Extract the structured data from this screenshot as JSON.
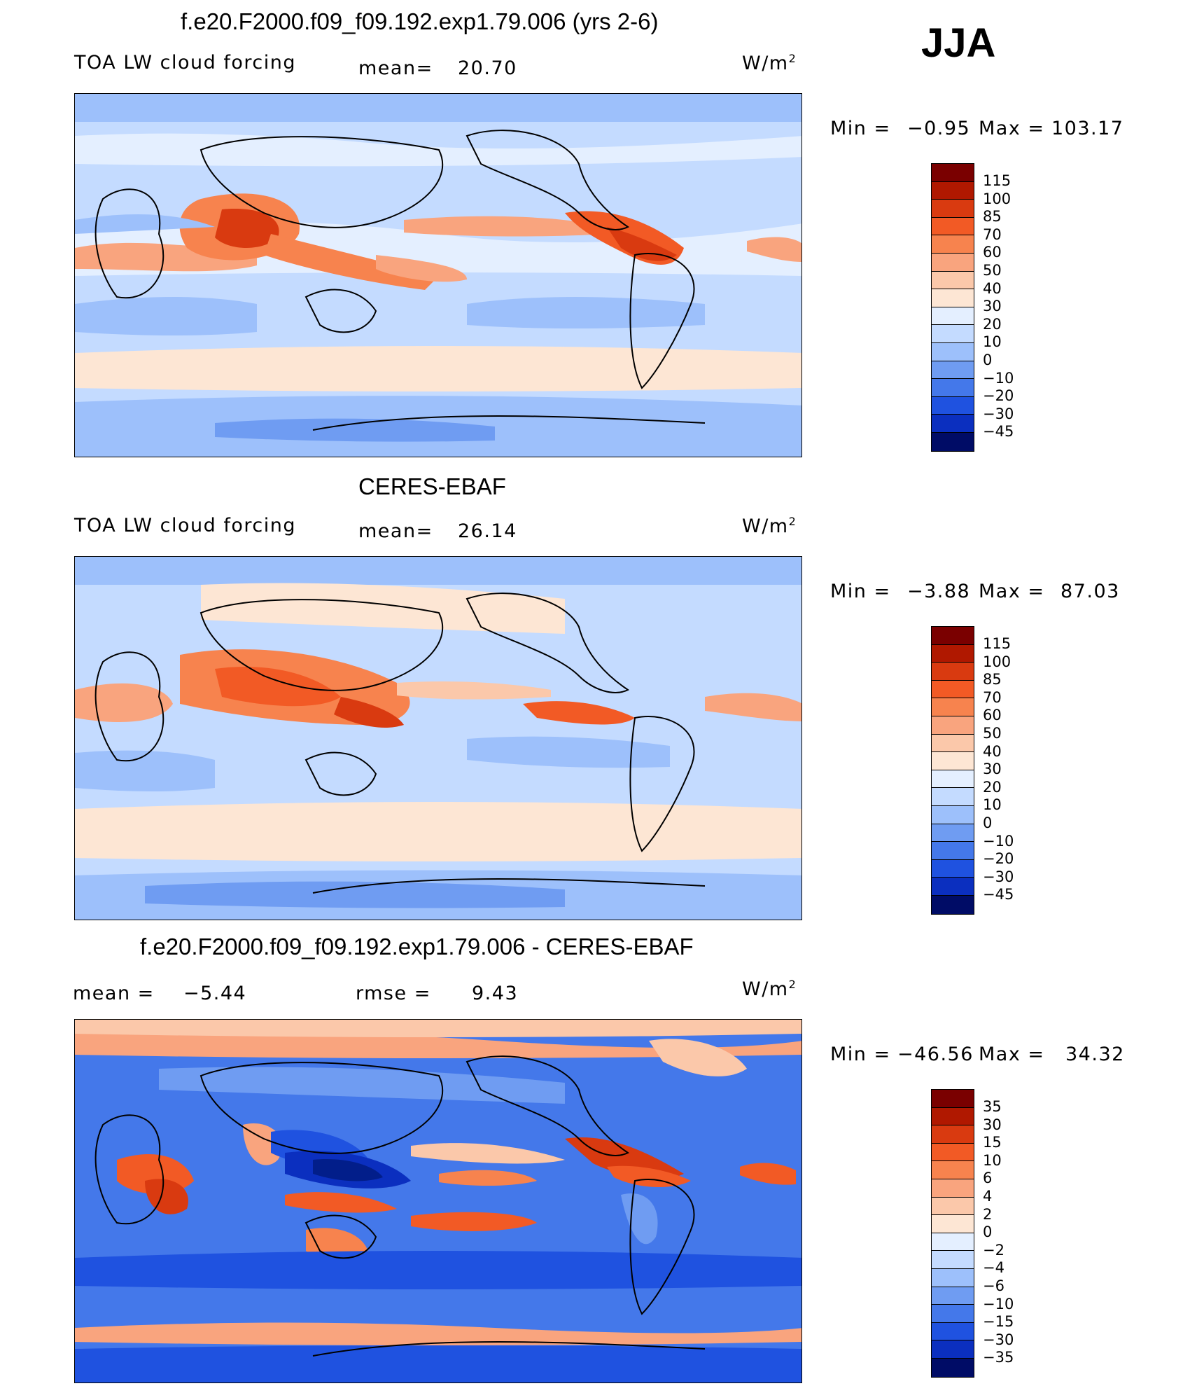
{
  "season": "JJA",
  "unit_base": "W/m",
  "unit_sup": "2",
  "min_label": "Min  =",
  "max_label": "Max  =",
  "panels": [
    {
      "title": "f.e20.F2000.f09_f09.192.exp1.79.006 (yrs 2-6)",
      "left_label": "TOA LW cloud forcing",
      "mid_label": "mean=",
      "mid_value": "20.70",
      "min": "−0.95",
      "max": "103.17",
      "levels": [
        "115",
        "100",
        "85",
        "70",
        "60",
        "50",
        "40",
        "30",
        "20",
        "10",
        "0",
        "−10",
        "−20",
        "−30",
        "−45"
      ]
    },
    {
      "title": "CERES-EBAF",
      "left_label": "TOA LW cloud forcing",
      "mid_label": "mean=",
      "mid_value": "26.14",
      "min": "−3.88",
      "max": "87.03",
      "levels": [
        "115",
        "100",
        "85",
        "70",
        "60",
        "50",
        "40",
        "30",
        "20",
        "10",
        "0",
        "−10",
        "−20",
        "−30",
        "−45"
      ]
    },
    {
      "title": "f.e20.F2000.f09_f09.192.exp1.79.006 - CERES-EBAF",
      "left_label": "mean  =",
      "left_value": "−5.44",
      "mid_label": "rmse  =",
      "mid_value": "9.43",
      "min": "−46.56",
      "max": "34.32",
      "levels": [
        "35",
        "30",
        "15",
        "10",
        "6",
        "4",
        "2",
        "0",
        "−2",
        "−4",
        "−6",
        "−10",
        "−15",
        "−30",
        "−35"
      ]
    }
  ],
  "colors": {
    "scale": [
      "#7a0000",
      "#b01800",
      "#d93a10",
      "#f25a25",
      "#f7834e",
      "#f9a47e",
      "#fbc8aa",
      "#fde6d4",
      "#e4efff",
      "#c4dbff",
      "#9dc0fb",
      "#6f9cf2",
      "#4478ea",
      "#1f52e0",
      "#0b2fbf",
      "#021e8a",
      "#000c66"
    ]
  }
}
